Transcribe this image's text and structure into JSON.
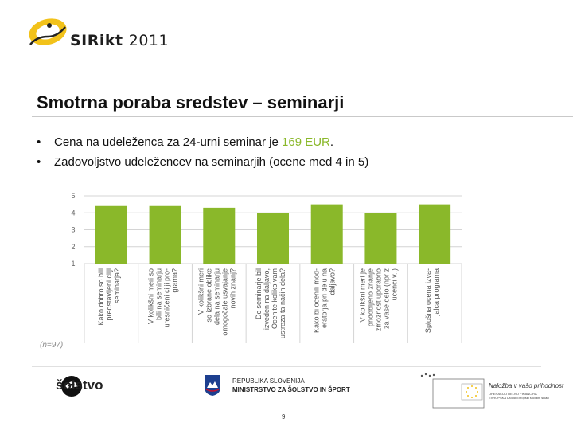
{
  "header": {
    "logo_brand": "SIRikt",
    "logo_year": "2011"
  },
  "slide": {
    "title": "Smotrna poraba sredstev – seminarji",
    "bullets": [
      {
        "symbol": "•",
        "before": "Cena na udeleženca za 24-urni seminar je ",
        "highlight": "169 EUR",
        "after": "."
      },
      {
        "symbol": "•",
        "before": "Zadovoljstvo udeležencev na seminarjih (ocene med 4 in 5)",
        "highlight": "",
        "after": ""
      }
    ],
    "n_label": "(n=97)",
    "page_number": "9"
  },
  "colors": {
    "bar": "#8ab82a",
    "highlight": "#8ab82a",
    "grid": "#d4d4d4"
  },
  "chart_data": {
    "type": "bar",
    "y_ticks": [
      "5",
      "4",
      "3",
      "2",
      "1"
    ],
    "ylim": [
      1,
      5
    ],
    "grid": true,
    "categories": [
      [
        "Kako dobro so bili",
        "predstavljeni cilji",
        "seminarja?"
      ],
      [
        "V kolikšni meri so",
        "bili na seminarju",
        "uresničeni cilji pro-",
        "grama?"
      ],
      [
        "V kolikšni meri",
        "so izbrane oblike",
        "dela na seminarju",
        "omogočale usvajanje",
        "novih znanj?"
      ],
      [
        "Dc seminarje bil",
        "izveden na daljavo,",
        "Ocenite koliko vam",
        "ustreza ta način dela?"
      ],
      [
        "Kako bi ocenili mod-",
        "eratorja pri delu na",
        "daljavo?"
      ],
      [
        "V kolikšni meri je",
        "pridobljeno znanje",
        "zmožnost uporabno",
        "za vaše delo (npr z",
        "učenci v..)"
      ],
      [
        "Splošna ocena izva-",
        "jalca programa"
      ]
    ],
    "values": [
      4.4,
      4.4,
      4.3,
      4.0,
      4.5,
      4.0,
      4.5
    ]
  },
  "footer": {
    "solstvo_logo": "šolstvo",
    "republic_line1": "REPUBLIKA SLOVENIJA",
    "republic_line2": "MINISTRSTVO ZA ŠOLSTVO IN ŠPORT",
    "eu_tagline": "Naložba v vašo prihodnost",
    "eu_subtitle": "OPERACIJO DELNO FINANCIRA EVROPSKA UNIJA Evropski socialni sklad"
  }
}
